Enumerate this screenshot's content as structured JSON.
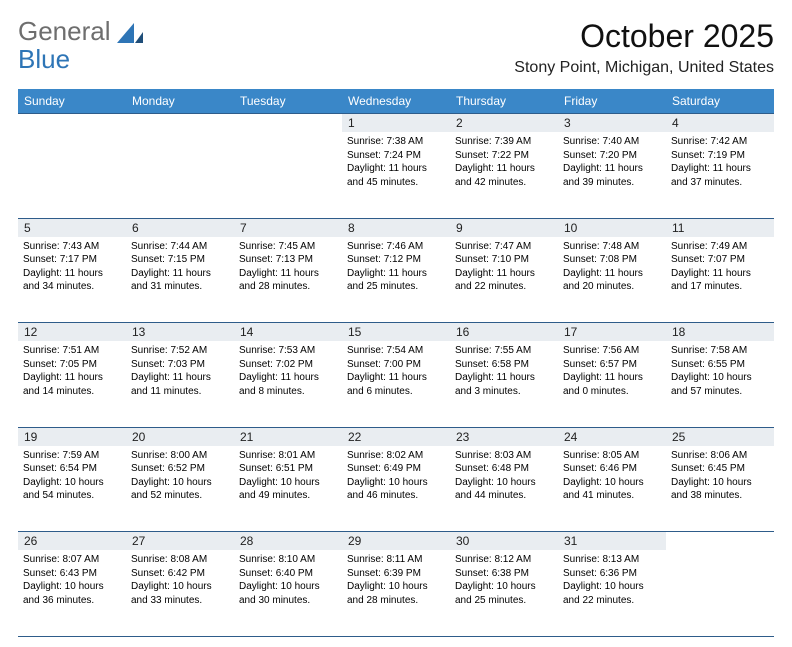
{
  "logo": {
    "word1": "General",
    "word2": "Blue"
  },
  "header": {
    "month_title": "October 2025",
    "location": "Stony Point, Michigan, United States"
  },
  "style": {
    "header_bg": "#3a87c8",
    "header_text": "#ffffff",
    "daynum_bg": "#e9edf1",
    "rule_color": "#2e5c8a",
    "page_bg": "#ffffff",
    "logo_gray": "#6e6e6e",
    "logo_blue": "#2e75b6",
    "body_font_size": 10,
    "header_font_size": 12,
    "title_font_size": 32,
    "location_font_size": 16
  },
  "days_of_week": [
    "Sunday",
    "Monday",
    "Tuesday",
    "Wednesday",
    "Thursday",
    "Friday",
    "Saturday"
  ],
  "weeks": [
    [
      null,
      null,
      null,
      {
        "n": "1",
        "sr": "Sunrise: 7:38 AM",
        "ss": "Sunset: 7:24 PM",
        "dl": "Daylight: 11 hours and 45 minutes."
      },
      {
        "n": "2",
        "sr": "Sunrise: 7:39 AM",
        "ss": "Sunset: 7:22 PM",
        "dl": "Daylight: 11 hours and 42 minutes."
      },
      {
        "n": "3",
        "sr": "Sunrise: 7:40 AM",
        "ss": "Sunset: 7:20 PM",
        "dl": "Daylight: 11 hours and 39 minutes."
      },
      {
        "n": "4",
        "sr": "Sunrise: 7:42 AM",
        "ss": "Sunset: 7:19 PM",
        "dl": "Daylight: 11 hours and 37 minutes."
      }
    ],
    [
      {
        "n": "5",
        "sr": "Sunrise: 7:43 AM",
        "ss": "Sunset: 7:17 PM",
        "dl": "Daylight: 11 hours and 34 minutes."
      },
      {
        "n": "6",
        "sr": "Sunrise: 7:44 AM",
        "ss": "Sunset: 7:15 PM",
        "dl": "Daylight: 11 hours and 31 minutes."
      },
      {
        "n": "7",
        "sr": "Sunrise: 7:45 AM",
        "ss": "Sunset: 7:13 PM",
        "dl": "Daylight: 11 hours and 28 minutes."
      },
      {
        "n": "8",
        "sr": "Sunrise: 7:46 AM",
        "ss": "Sunset: 7:12 PM",
        "dl": "Daylight: 11 hours and 25 minutes."
      },
      {
        "n": "9",
        "sr": "Sunrise: 7:47 AM",
        "ss": "Sunset: 7:10 PM",
        "dl": "Daylight: 11 hours and 22 minutes."
      },
      {
        "n": "10",
        "sr": "Sunrise: 7:48 AM",
        "ss": "Sunset: 7:08 PM",
        "dl": "Daylight: 11 hours and 20 minutes."
      },
      {
        "n": "11",
        "sr": "Sunrise: 7:49 AM",
        "ss": "Sunset: 7:07 PM",
        "dl": "Daylight: 11 hours and 17 minutes."
      }
    ],
    [
      {
        "n": "12",
        "sr": "Sunrise: 7:51 AM",
        "ss": "Sunset: 7:05 PM",
        "dl": "Daylight: 11 hours and 14 minutes."
      },
      {
        "n": "13",
        "sr": "Sunrise: 7:52 AM",
        "ss": "Sunset: 7:03 PM",
        "dl": "Daylight: 11 hours and 11 minutes."
      },
      {
        "n": "14",
        "sr": "Sunrise: 7:53 AM",
        "ss": "Sunset: 7:02 PM",
        "dl": "Daylight: 11 hours and 8 minutes."
      },
      {
        "n": "15",
        "sr": "Sunrise: 7:54 AM",
        "ss": "Sunset: 7:00 PM",
        "dl": "Daylight: 11 hours and 6 minutes."
      },
      {
        "n": "16",
        "sr": "Sunrise: 7:55 AM",
        "ss": "Sunset: 6:58 PM",
        "dl": "Daylight: 11 hours and 3 minutes."
      },
      {
        "n": "17",
        "sr": "Sunrise: 7:56 AM",
        "ss": "Sunset: 6:57 PM",
        "dl": "Daylight: 11 hours and 0 minutes."
      },
      {
        "n": "18",
        "sr": "Sunrise: 7:58 AM",
        "ss": "Sunset: 6:55 PM",
        "dl": "Daylight: 10 hours and 57 minutes."
      }
    ],
    [
      {
        "n": "19",
        "sr": "Sunrise: 7:59 AM",
        "ss": "Sunset: 6:54 PM",
        "dl": "Daylight: 10 hours and 54 minutes."
      },
      {
        "n": "20",
        "sr": "Sunrise: 8:00 AM",
        "ss": "Sunset: 6:52 PM",
        "dl": "Daylight: 10 hours and 52 minutes."
      },
      {
        "n": "21",
        "sr": "Sunrise: 8:01 AM",
        "ss": "Sunset: 6:51 PM",
        "dl": "Daylight: 10 hours and 49 minutes."
      },
      {
        "n": "22",
        "sr": "Sunrise: 8:02 AM",
        "ss": "Sunset: 6:49 PM",
        "dl": "Daylight: 10 hours and 46 minutes."
      },
      {
        "n": "23",
        "sr": "Sunrise: 8:03 AM",
        "ss": "Sunset: 6:48 PM",
        "dl": "Daylight: 10 hours and 44 minutes."
      },
      {
        "n": "24",
        "sr": "Sunrise: 8:05 AM",
        "ss": "Sunset: 6:46 PM",
        "dl": "Daylight: 10 hours and 41 minutes."
      },
      {
        "n": "25",
        "sr": "Sunrise: 8:06 AM",
        "ss": "Sunset: 6:45 PM",
        "dl": "Daylight: 10 hours and 38 minutes."
      }
    ],
    [
      {
        "n": "26",
        "sr": "Sunrise: 8:07 AM",
        "ss": "Sunset: 6:43 PM",
        "dl": "Daylight: 10 hours and 36 minutes."
      },
      {
        "n": "27",
        "sr": "Sunrise: 8:08 AM",
        "ss": "Sunset: 6:42 PM",
        "dl": "Daylight: 10 hours and 33 minutes."
      },
      {
        "n": "28",
        "sr": "Sunrise: 8:10 AM",
        "ss": "Sunset: 6:40 PM",
        "dl": "Daylight: 10 hours and 30 minutes."
      },
      {
        "n": "29",
        "sr": "Sunrise: 8:11 AM",
        "ss": "Sunset: 6:39 PM",
        "dl": "Daylight: 10 hours and 28 minutes."
      },
      {
        "n": "30",
        "sr": "Sunrise: 8:12 AM",
        "ss": "Sunset: 6:38 PM",
        "dl": "Daylight: 10 hours and 25 minutes."
      },
      {
        "n": "31",
        "sr": "Sunrise: 8:13 AM",
        "ss": "Sunset: 6:36 PM",
        "dl": "Daylight: 10 hours and 22 minutes."
      },
      null
    ]
  ]
}
